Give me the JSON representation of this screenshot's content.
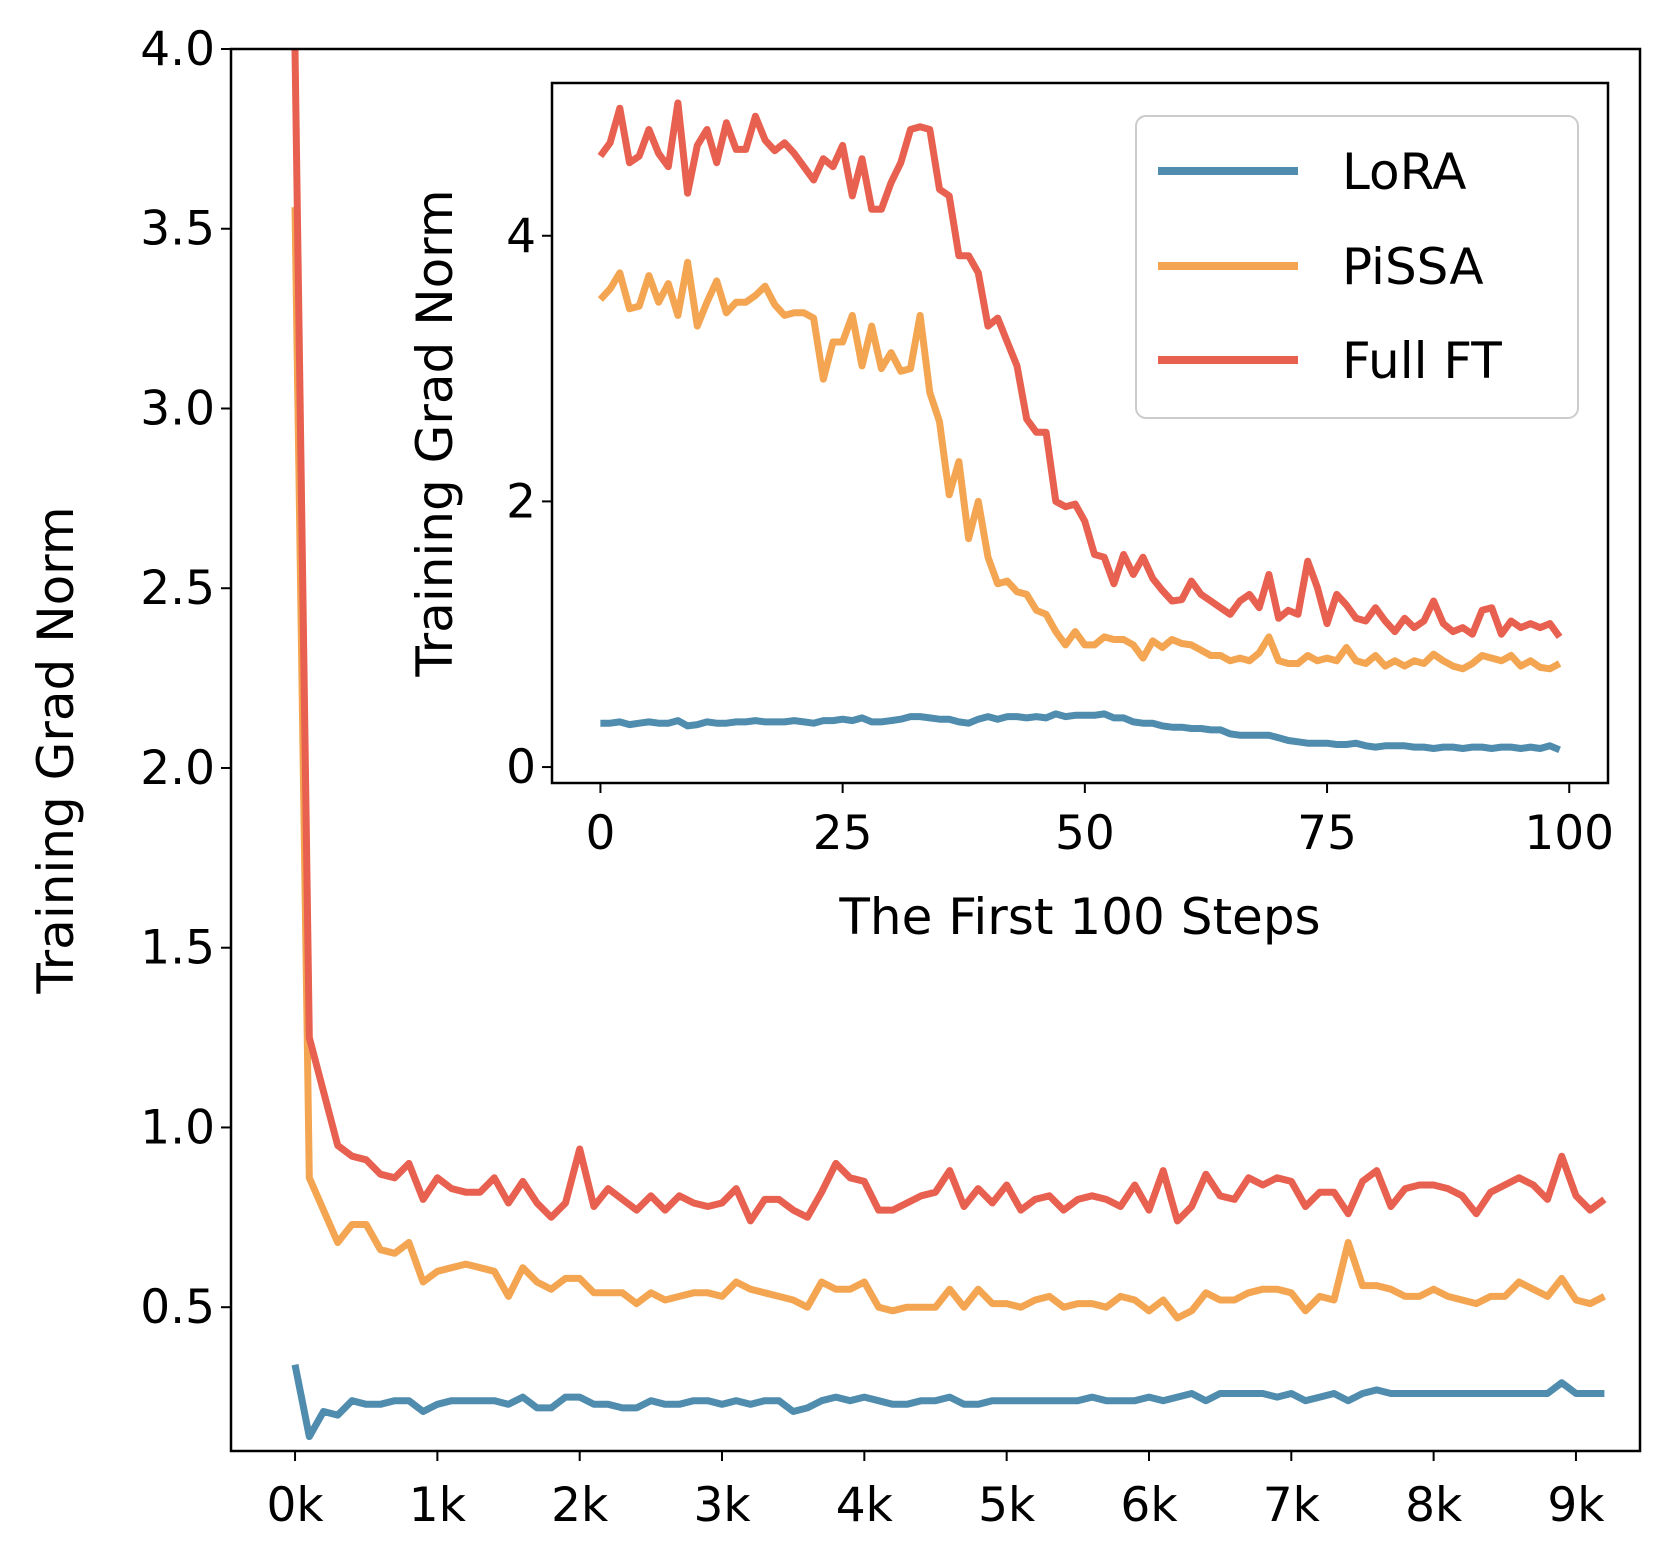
{
  "chart_data": [
    {
      "type": "line",
      "title": "",
      "xlabel": "",
      "ylabel": "Training Grad Norm",
      "xlim": [
        -0.45,
        9.45
      ],
      "ylim": [
        0.1,
        4.0
      ],
      "grid": false,
      "x_ticks": [
        0,
        1,
        2,
        3,
        4,
        5,
        6,
        7,
        8,
        9
      ],
      "x_tick_labels": [
        "0k",
        "1k",
        "2k",
        "3k",
        "4k",
        "5k",
        "6k",
        "7k",
        "8k",
        "9k"
      ],
      "y_ticks": [
        0.5,
        1.0,
        1.5,
        2.0,
        2.5,
        3.0,
        3.5,
        4.0
      ],
      "y_tick_labels": [
        "0.5",
        "1.0",
        "1.5",
        "2.0",
        "2.5",
        "3.0",
        "3.5",
        "4.0"
      ],
      "x": [
        0.0,
        0.1,
        0.2,
        0.3,
        0.4,
        0.5,
        0.6,
        0.7,
        0.8,
        0.9,
        1.0,
        1.1,
        1.2,
        1.3,
        1.4,
        1.5,
        1.6,
        1.7,
        1.8,
        1.9,
        2.0,
        2.1,
        2.2,
        2.3,
        2.4,
        2.5,
        2.6,
        2.7,
        2.8,
        2.9,
        3.0,
        3.1,
        3.2,
        3.3,
        3.4,
        3.5,
        3.6,
        3.7,
        3.8,
        3.9,
        4.0,
        4.1,
        4.2,
        4.3,
        4.4,
        4.5,
        4.6,
        4.7,
        4.8,
        4.9,
        5.0,
        5.1,
        5.2,
        5.3,
        5.4,
        5.5,
        5.6,
        5.7,
        5.8,
        5.9,
        6.0,
        6.1,
        6.2,
        6.3,
        6.4,
        6.5,
        6.6,
        6.7,
        6.8,
        6.9,
        7.0,
        7.1,
        7.2,
        7.3,
        7.4,
        7.5,
        7.6,
        7.7,
        7.8,
        7.9,
        8.0,
        8.1,
        8.2,
        8.3,
        8.4,
        8.5,
        8.6,
        8.7,
        8.8,
        8.9,
        9.0,
        9.1,
        9.2
      ],
      "series": [
        {
          "name": "LoRA",
          "color": "#4f8cad",
          "values": [
            0.34,
            0.14,
            0.21,
            0.2,
            0.24,
            0.23,
            0.23,
            0.24,
            0.24,
            0.21,
            0.23,
            0.24,
            0.24,
            0.24,
            0.24,
            0.23,
            0.25,
            0.22,
            0.22,
            0.25,
            0.25,
            0.23,
            0.23,
            0.22,
            0.22,
            0.24,
            0.23,
            0.23,
            0.24,
            0.24,
            0.23,
            0.24,
            0.23,
            0.24,
            0.24,
            0.21,
            0.22,
            0.24,
            0.25,
            0.24,
            0.25,
            0.24,
            0.23,
            0.23,
            0.24,
            0.24,
            0.25,
            0.23,
            0.23,
            0.24,
            0.24,
            0.24,
            0.24,
            0.24,
            0.24,
            0.24,
            0.25,
            0.24,
            0.24,
            0.24,
            0.25,
            0.24,
            0.25,
            0.26,
            0.24,
            0.26,
            0.26,
            0.26,
            0.26,
            0.25,
            0.26,
            0.24,
            0.25,
            0.26,
            0.24,
            0.26,
            0.27,
            0.26,
            0.26,
            0.26,
            0.26,
            0.26,
            0.26,
            0.26,
            0.26,
            0.26,
            0.26,
            0.26,
            0.26,
            0.29,
            0.26,
            0.26,
            0.26
          ]
        },
        {
          "name": "PiSSA",
          "color": "#f4a552",
          "values": [
            3.56,
            0.86,
            0.77,
            0.68,
            0.73,
            0.73,
            0.66,
            0.65,
            0.68,
            0.57,
            0.6,
            0.61,
            0.62,
            0.61,
            0.6,
            0.53,
            0.61,
            0.57,
            0.55,
            0.58,
            0.58,
            0.54,
            0.54,
            0.54,
            0.51,
            0.54,
            0.52,
            0.53,
            0.54,
            0.54,
            0.53,
            0.57,
            0.55,
            0.54,
            0.53,
            0.52,
            0.5,
            0.57,
            0.55,
            0.55,
            0.57,
            0.5,
            0.49,
            0.5,
            0.5,
            0.5,
            0.55,
            0.5,
            0.55,
            0.51,
            0.51,
            0.5,
            0.52,
            0.53,
            0.5,
            0.51,
            0.51,
            0.5,
            0.53,
            0.52,
            0.49,
            0.52,
            0.47,
            0.49,
            0.54,
            0.52,
            0.52,
            0.54,
            0.55,
            0.55,
            0.54,
            0.49,
            0.53,
            0.52,
            0.68,
            0.56,
            0.56,
            0.55,
            0.53,
            0.53,
            0.55,
            0.53,
            0.52,
            0.51,
            0.53,
            0.53,
            0.57,
            0.55,
            0.53,
            0.58,
            0.52,
            0.51,
            0.53
          ]
        },
        {
          "name": "Full FT",
          "color": "#e8604f",
          "values": [
            4.0,
            1.25,
            1.1,
            0.95,
            0.92,
            0.91,
            0.87,
            0.86,
            0.9,
            0.8,
            0.86,
            0.83,
            0.82,
            0.82,
            0.86,
            0.79,
            0.85,
            0.79,
            0.75,
            0.79,
            0.94,
            0.78,
            0.83,
            0.8,
            0.77,
            0.81,
            0.77,
            0.81,
            0.79,
            0.78,
            0.79,
            0.83,
            0.74,
            0.8,
            0.8,
            0.77,
            0.75,
            0.82,
            0.9,
            0.86,
            0.85,
            0.77,
            0.77,
            0.79,
            0.81,
            0.82,
            0.88,
            0.78,
            0.83,
            0.79,
            0.84,
            0.77,
            0.8,
            0.81,
            0.77,
            0.8,
            0.81,
            0.8,
            0.78,
            0.84,
            0.77,
            0.88,
            0.74,
            0.78,
            0.87,
            0.81,
            0.8,
            0.86,
            0.84,
            0.86,
            0.85,
            0.78,
            0.82,
            0.82,
            0.76,
            0.85,
            0.88,
            0.78,
            0.83,
            0.84,
            0.84,
            0.83,
            0.81,
            0.76,
            0.82,
            0.84,
            0.86,
            0.84,
            0.8,
            0.92,
            0.81,
            0.77,
            0.8
          ]
        }
      ]
    },
    {
      "type": "line",
      "title": "",
      "xlabel": "The First 100 Steps",
      "ylabel": "Training Grad Norm",
      "xlim": [
        -5,
        104
      ],
      "ylim": [
        -0.12,
        5.15
      ],
      "grid": false,
      "x_ticks": [
        0,
        25,
        50,
        75,
        100
      ],
      "x_tick_labels": [
        "0",
        "25",
        "50",
        "75",
        "100"
      ],
      "y_ticks": [
        0,
        2,
        4
      ],
      "y_tick_labels": [
        "0",
        "2",
        "4"
      ],
      "legend_position": "upper-right",
      "series": [
        {
          "name": "LoRA",
          "color": "#4f8cad",
          "values": [
            0.33,
            0.33,
            0.34,
            0.32,
            0.33,
            0.34,
            0.33,
            0.33,
            0.35,
            0.31,
            0.32,
            0.34,
            0.33,
            0.33,
            0.34,
            0.34,
            0.35,
            0.34,
            0.34,
            0.34,
            0.35,
            0.34,
            0.33,
            0.35,
            0.35,
            0.36,
            0.35,
            0.37,
            0.34,
            0.34,
            0.35,
            0.36,
            0.38,
            0.38,
            0.37,
            0.36,
            0.36,
            0.34,
            0.33,
            0.36,
            0.38,
            0.36,
            0.38,
            0.38,
            0.37,
            0.38,
            0.37,
            0.4,
            0.38,
            0.39,
            0.39,
            0.39,
            0.4,
            0.37,
            0.37,
            0.34,
            0.33,
            0.33,
            0.31,
            0.3,
            0.3,
            0.29,
            0.29,
            0.28,
            0.28,
            0.25,
            0.24,
            0.24,
            0.24,
            0.24,
            0.22,
            0.2,
            0.19,
            0.18,
            0.18,
            0.18,
            0.17,
            0.17,
            0.18,
            0.16,
            0.15,
            0.16,
            0.16,
            0.16,
            0.15,
            0.15,
            0.14,
            0.15,
            0.15,
            0.14,
            0.15,
            0.15,
            0.14,
            0.15,
            0.15,
            0.14,
            0.15,
            0.14,
            0.16,
            0.13
          ]
        },
        {
          "name": "PiSSA",
          "color": "#f4a552",
          "values": [
            3.52,
            3.6,
            3.72,
            3.45,
            3.47,
            3.7,
            3.5,
            3.64,
            3.4,
            3.8,
            3.32,
            3.5,
            3.66,
            3.42,
            3.5,
            3.5,
            3.55,
            3.62,
            3.48,
            3.4,
            3.42,
            3.42,
            3.38,
            2.92,
            3.2,
            3.2,
            3.4,
            3.02,
            3.32,
            3.0,
            3.12,
            2.98,
            3.0,
            3.4,
            2.82,
            2.6,
            2.05,
            2.3,
            1.72,
            2.0,
            1.58,
            1.38,
            1.4,
            1.32,
            1.3,
            1.18,
            1.15,
            1.02,
            0.92,
            1.02,
            0.92,
            0.92,
            0.98,
            0.96,
            0.96,
            0.92,
            0.82,
            0.95,
            0.9,
            0.96,
            0.93,
            0.92,
            0.88,
            0.84,
            0.84,
            0.8,
            0.82,
            0.8,
            0.86,
            0.98,
            0.8,
            0.78,
            0.78,
            0.84,
            0.8,
            0.82,
            0.8,
            0.9,
            0.8,
            0.78,
            0.84,
            0.76,
            0.8,
            0.76,
            0.8,
            0.78,
            0.85,
            0.8,
            0.76,
            0.74,
            0.78,
            0.84,
            0.82,
            0.8,
            0.84,
            0.76,
            0.8,
            0.75,
            0.74,
            0.78
          ]
        },
        {
          "name": "Full FT",
          "color": "#e8604f",
          "values": [
            4.6,
            4.7,
            4.96,
            4.55,
            4.6,
            4.8,
            4.62,
            4.52,
            5.0,
            4.32,
            4.68,
            4.8,
            4.55,
            4.85,
            4.65,
            4.65,
            4.9,
            4.72,
            4.64,
            4.7,
            4.62,
            4.52,
            4.42,
            4.58,
            4.52,
            4.68,
            4.3,
            4.58,
            4.2,
            4.2,
            4.4,
            4.55,
            4.8,
            4.82,
            4.8,
            4.35,
            4.3,
            3.85,
            3.85,
            3.72,
            3.32,
            3.38,
            3.2,
            3.02,
            2.62,
            2.52,
            2.52,
            2.0,
            1.96,
            1.98,
            1.85,
            1.6,
            1.58,
            1.38,
            1.6,
            1.45,
            1.58,
            1.42,
            1.33,
            1.25,
            1.26,
            1.4,
            1.3,
            1.25,
            1.2,
            1.15,
            1.25,
            1.3,
            1.2,
            1.45,
            1.12,
            1.18,
            1.15,
            1.55,
            1.35,
            1.08,
            1.3,
            1.22,
            1.12,
            1.1,
            1.2,
            1.1,
            1.02,
            1.12,
            1.05,
            1.1,
            1.25,
            1.08,
            1.02,
            1.05,
            1.0,
            1.18,
            1.2,
            1.0,
            1.1,
            1.05,
            1.08,
            1.05,
            1.08,
            0.98
          ]
        }
      ]
    }
  ]
}
